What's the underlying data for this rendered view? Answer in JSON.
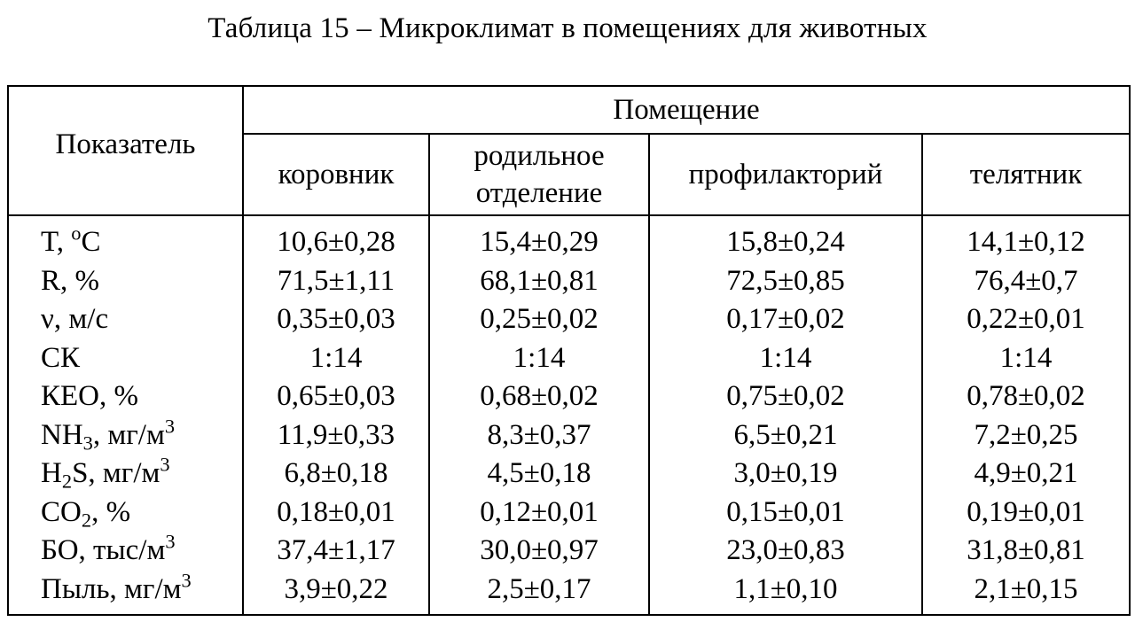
{
  "caption": "Таблица 15 – Микроклимат в помещениях для животных",
  "header": {
    "param": "Показатель",
    "group": "Помещение",
    "columns": [
      {
        "line1": "коровник",
        "line2": ""
      },
      {
        "line1": "родильное",
        "line2": "отделение"
      },
      {
        "line1": "профилакторий",
        "line2": ""
      },
      {
        "line1": "телятник",
        "line2": ""
      }
    ]
  },
  "rows": [
    {
      "param": {
        "pre": "T, ",
        "sup": "o",
        "post": "C",
        "sub": "",
        "after_sub": ""
      },
      "values": [
        "10,6±0,28",
        "15,4±0,29",
        "15,8±0,24",
        "14,1±0,12"
      ]
    },
    {
      "param": {
        "pre": "R, %",
        "sup": "",
        "post": "",
        "sub": "",
        "after_sub": ""
      },
      "values": [
        "71,5±1,11",
        "68,1±0,81",
        "72,5±0,85",
        "76,4±0,7"
      ]
    },
    {
      "param": {
        "pre": "ν, м/с",
        "sup": "",
        "post": "",
        "sub": "",
        "after_sub": ""
      },
      "values": [
        "0,35±0,03",
        "0,25±0,02",
        "0,17±0,02",
        "0,22±0,01"
      ]
    },
    {
      "param": {
        "pre": "СК",
        "sup": "",
        "post": "",
        "sub": "",
        "after_sub": ""
      },
      "values": [
        "1:14",
        "1:14",
        "1:14",
        "1:14"
      ]
    },
    {
      "param": {
        "pre": "КЕО, %",
        "sup": "",
        "post": "",
        "sub": "",
        "after_sub": ""
      },
      "values": [
        "0,65±0,03",
        "0,68±0,02",
        "0,75±0,02",
        "0,78±0,02"
      ]
    },
    {
      "param": {
        "pre": "NH",
        "sub": "3",
        "after_sub": ", мг/м",
        "sup": "3",
        "post": ""
      },
      "values": [
        "11,9±0,33",
        "8,3±0,37",
        "6,5±0,21",
        "7,2±0,25"
      ]
    },
    {
      "param": {
        "pre": "H",
        "sub": "2",
        "after_sub": "S, мг/м",
        "sup": "3",
        "post": ""
      },
      "values": [
        "6,8±0,18",
        "4,5±0,18",
        "3,0±0,19",
        "4,9±0,21"
      ]
    },
    {
      "param": {
        "pre": "CO",
        "sub": "2",
        "after_sub": ", %",
        "sup": "",
        "post": ""
      },
      "values": [
        "0,18±0,01",
        "0,12±0,01",
        "0,15±0,01",
        "0,19±0,01"
      ]
    },
    {
      "param": {
        "pre": "БО, тыс/м",
        "sup": "3",
        "post": "",
        "sub": "",
        "after_sub": ""
      },
      "values": [
        "37,4±1,17",
        "30,0±0,97",
        "23,0±0,83",
        "31,8±0,81"
      ]
    },
    {
      "param": {
        "pre": "Пыль, мг/м",
        "sup": "3",
        "post": "",
        "sub": "",
        "after_sub": ""
      },
      "values": [
        "3,9±0,22",
        "2,5±0,17",
        "1,1±0,10",
        "2,1±0,15"
      ]
    }
  ]
}
